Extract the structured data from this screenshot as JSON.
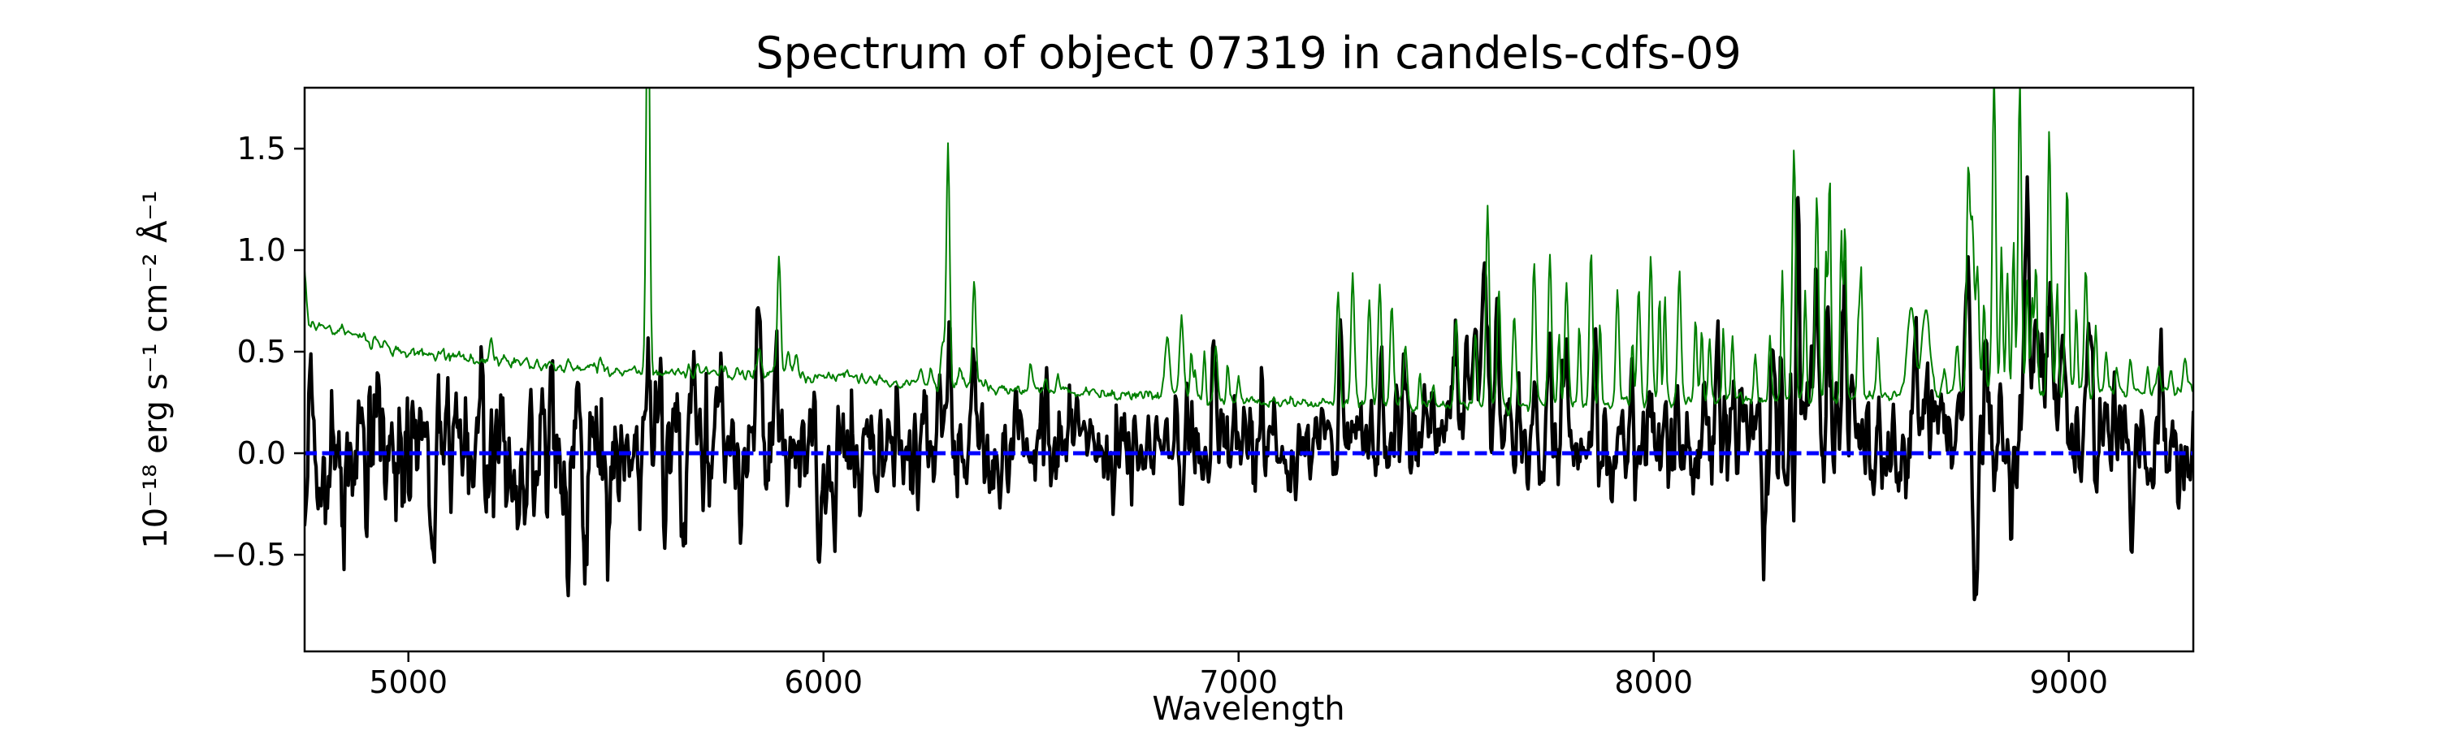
{
  "chart_data": {
    "type": "line",
    "title": "Spectrum of object 07319 in candels-cdfs-09",
    "xlabel": "Wavelength",
    "ylabel": "10⁻¹⁸ erg s⁻¹ cm⁻² Å⁻¹",
    "xlim": [
      4750,
      9300
    ],
    "ylim": [
      -0.976,
      1.8
    ],
    "xticks": [
      5000,
      6000,
      7000,
      8000,
      9000
    ],
    "yticks": [
      -0.5,
      0.0,
      0.5,
      1.0,
      1.5
    ],
    "grid": false,
    "legend": null,
    "background": "#ffffff",
    "wavelength_step": 2.5,
    "series": [
      {
        "name": "flux-spectrum",
        "color": "#000000",
        "linewidth": 4.2,
        "role": "object flux (noisy, centered on zero)",
        "noise_seed": 7319,
        "base_anchors": [
          [
            4750,
            0.0
          ],
          [
            5000,
            -0.02
          ],
          [
            5400,
            -0.03
          ],
          [
            5800,
            0.0
          ],
          [
            6200,
            0.02
          ],
          [
            6600,
            0.03
          ],
          [
            7000,
            0.04
          ],
          [
            7300,
            0.05
          ],
          [
            7550,
            0.12
          ],
          [
            7620,
            0.15
          ],
          [
            7700,
            0.1
          ],
          [
            7900,
            0.07
          ],
          [
            8100,
            0.08
          ],
          [
            8300,
            0.12
          ],
          [
            8450,
            0.1
          ],
          [
            8600,
            0.08
          ],
          [
            8740,
            0.12
          ],
          [
            8840,
            0.22
          ],
          [
            8950,
            0.22
          ],
          [
            9020,
            0.12
          ],
          [
            9150,
            0.03
          ],
          [
            9300,
            0.02
          ]
        ],
        "noise_sigma_anchors": [
          [
            4750,
            0.23
          ],
          [
            5000,
            0.215
          ],
          [
            5300,
            0.21
          ],
          [
            5600,
            0.19
          ],
          [
            5900,
            0.17
          ],
          [
            6200,
            0.155
          ],
          [
            6500,
            0.14
          ],
          [
            6800,
            0.125
          ],
          [
            7100,
            0.115
          ],
          [
            7400,
            0.115
          ],
          [
            7600,
            0.15
          ],
          [
            7800,
            0.135
          ],
          [
            8000,
            0.145
          ],
          [
            8200,
            0.16
          ],
          [
            8350,
            0.18
          ],
          [
            8500,
            0.155
          ],
          [
            8650,
            0.145
          ],
          [
            8800,
            0.2
          ],
          [
            8950,
            0.19
          ],
          [
            9100,
            0.15
          ],
          [
            9300,
            0.13
          ]
        ],
        "spikes": [
          [
            4765,
            0.35,
            4
          ],
          [
            4805,
            -0.5,
            4
          ],
          [
            4838,
            -0.45,
            4
          ],
          [
            5060,
            -0.3,
            4
          ],
          [
            5216,
            -0.35,
            4
          ],
          [
            5580,
            0.42,
            4
          ],
          [
            5753,
            0.38,
            4
          ],
          [
            5845,
            0.52,
            4
          ],
          [
            5883,
            0.42,
            4
          ],
          [
            6280,
            0.4,
            4
          ],
          [
            6308,
            0.55,
            4
          ],
          [
            6360,
            0.5,
            4
          ],
          [
            6465,
            0.28,
            4
          ],
          [
            6537,
            0.25,
            4
          ],
          [
            6875,
            0.3,
            7
          ],
          [
            6940,
            0.3,
            6
          ],
          [
            7248,
            0.33,
            4
          ],
          [
            7343,
            0.48,
            4
          ],
          [
            7398,
            0.58,
            4
          ],
          [
            7526,
            0.28,
            4
          ],
          [
            7593,
            0.6,
            7
          ],
          [
            7622,
            0.45,
            5
          ],
          [
            7712,
            0.4,
            4
          ],
          [
            7750,
            0.38,
            4
          ],
          [
            7790,
            0.35,
            4
          ],
          [
            7860,
            0.28,
            4
          ],
          [
            8346,
            0.95,
            4
          ],
          [
            8391,
            0.8,
            4
          ],
          [
            8420,
            0.55,
            4
          ],
          [
            8462,
            0.48,
            4
          ],
          [
            8500,
            0.4,
            4
          ],
          [
            8630,
            0.45,
            6
          ],
          [
            8658,
            0.45,
            6
          ],
          [
            8758,
            0.55,
            4
          ],
          [
            8775,
            -0.95,
            4
          ],
          [
            8800,
            0.4,
            4
          ],
          [
            8863,
            -0.72,
            4
          ],
          [
            8898,
            1.45,
            4
          ],
          [
            8918,
            0.8,
            4
          ],
          [
            8953,
            0.72,
            5
          ],
          [
            8986,
            0.72,
            4
          ],
          [
            9049,
            0.42,
            4
          ],
          [
            9152,
            -0.28,
            4
          ],
          [
            9220,
            0.25,
            4
          ]
        ]
      },
      {
        "name": "error-sky-spectrum",
        "color": "#008000",
        "linewidth": 2.0,
        "role": "noise / sky spectrum (thin green, clipped at top)",
        "wiggle_sigma": 0.009,
        "continuum_anchors": [
          [
            4750,
            0.86
          ],
          [
            4758,
            0.66
          ],
          [
            4790,
            0.615
          ],
          [
            4850,
            0.585
          ],
          [
            4900,
            0.565
          ],
          [
            4950,
            0.53
          ],
          [
            5000,
            0.5
          ],
          [
            5100,
            0.475
          ],
          [
            5200,
            0.455
          ],
          [
            5300,
            0.435
          ],
          [
            5400,
            0.42
          ],
          [
            5500,
            0.41
          ],
          [
            5600,
            0.405
          ],
          [
            5700,
            0.4
          ],
          [
            5800,
            0.4
          ],
          [
            5900,
            0.39
          ],
          [
            6000,
            0.38
          ],
          [
            6100,
            0.365
          ],
          [
            6200,
            0.35
          ],
          [
            6300,
            0.34
          ],
          [
            6400,
            0.325
          ],
          [
            6500,
            0.315
          ],
          [
            6600,
            0.3
          ],
          [
            6700,
            0.29
          ],
          [
            6800,
            0.28
          ],
          [
            6900,
            0.27
          ],
          [
            7000,
            0.26
          ],
          [
            7100,
            0.25
          ],
          [
            7200,
            0.245
          ],
          [
            7300,
            0.24
          ],
          [
            7400,
            0.235
          ],
          [
            7500,
            0.23
          ],
          [
            7600,
            0.235
          ],
          [
            7700,
            0.235
          ],
          [
            7800,
            0.235
          ],
          [
            7900,
            0.24
          ],
          [
            8000,
            0.25
          ],
          [
            8100,
            0.26
          ],
          [
            8200,
            0.27
          ],
          [
            8300,
            0.275
          ],
          [
            8400,
            0.27
          ],
          [
            8500,
            0.265
          ],
          [
            8600,
            0.285
          ],
          [
            8700,
            0.3
          ],
          [
            8800,
            0.305
          ],
          [
            8900,
            0.3
          ],
          [
            9000,
            0.3
          ],
          [
            9100,
            0.295
          ],
          [
            9200,
            0.3
          ],
          [
            9300,
            0.325
          ]
        ],
        "spikes": [
          [
            5199,
            0.11,
            4
          ],
          [
            5226,
            0.04,
            4
          ],
          [
            5461,
            0.05,
            4
          ],
          [
            5577,
            2.2,
            4
          ],
          [
            5697,
            0.04,
            4
          ],
          [
            5845,
            0.13,
            4
          ],
          [
            5893,
            0.56,
            4
          ],
          [
            5917,
            0.1,
            4
          ],
          [
            5935,
            0.08,
            4
          ],
          [
            6235,
            0.07,
            4
          ],
          [
            6257,
            0.08,
            4
          ],
          [
            6287,
            0.17,
            4
          ],
          [
            6300,
            1.19,
            4
          ],
          [
            6330,
            0.1,
            4
          ],
          [
            6363,
            0.53,
            4
          ],
          [
            6500,
            0.13,
            4
          ],
          [
            6533,
            0.08,
            4
          ],
          [
            6563,
            0.06,
            4
          ],
          [
            6828,
            0.29,
            6
          ],
          [
            6863,
            0.38,
            5
          ],
          [
            6886,
            0.24,
            3
          ],
          [
            6896,
            0.16,
            3
          ],
          [
            6918,
            0.22,
            3
          ],
          [
            6945,
            0.24,
            4
          ],
          [
            6974,
            0.17,
            3
          ],
          [
            7000,
            0.1,
            3
          ],
          [
            7240,
            0.56,
            4
          ],
          [
            7275,
            0.66,
            4
          ],
          [
            7315,
            0.52,
            4
          ],
          [
            7340,
            0.6,
            4
          ],
          [
            7369,
            0.48,
            4
          ],
          [
            7402,
            0.28,
            4
          ],
          [
            7437,
            0.17,
            3
          ],
          [
            7470,
            0.11,
            3
          ],
          [
            7524,
            0.43,
            4
          ],
          [
            7571,
            0.34,
            4
          ],
          [
            7600,
            1.0,
            4
          ],
          [
            7627,
            0.57,
            4
          ],
          [
            7664,
            0.44,
            4
          ],
          [
            7712,
            0.72,
            4
          ],
          [
            7750,
            0.74,
            4
          ],
          [
            7772,
            0.34,
            3
          ],
          [
            7790,
            0.6,
            4
          ],
          [
            7821,
            0.4,
            3
          ],
          [
            7849,
            0.76,
            4
          ],
          [
            7871,
            0.4,
            3
          ],
          [
            7913,
            0.55,
            4
          ],
          [
            7949,
            0.3,
            3
          ],
          [
            7964,
            0.55,
            4
          ],
          [
            7993,
            0.72,
            4
          ],
          [
            8014,
            0.5,
            3
          ],
          [
            8027,
            0.55,
            3
          ],
          [
            8062,
            0.68,
            4
          ],
          [
            8101,
            0.4,
            3
          ],
          [
            8116,
            0.35,
            3
          ],
          [
            8135,
            0.3,
            3
          ],
          [
            8168,
            0.35,
            3
          ],
          [
            8190,
            0.3,
            3
          ],
          [
            8245,
            0.2,
            3
          ],
          [
            8280,
            0.3,
            3
          ],
          [
            8310,
            0.6,
            3
          ],
          [
            8338,
            1.23,
            4
          ],
          [
            8365,
            0.55,
            3
          ],
          [
            8393,
            1.0,
            4
          ],
          [
            8415,
            0.7,
            3
          ],
          [
            8424,
            1.11,
            3
          ],
          [
            8452,
            0.8,
            3
          ],
          [
            8461,
            0.88,
            3
          ],
          [
            8493,
            0.38,
            3
          ],
          [
            8500,
            0.63,
            3
          ],
          [
            8540,
            0.3,
            3
          ],
          [
            8620,
            0.44,
            9
          ],
          [
            8655,
            0.42,
            9
          ],
          [
            8700,
            0.12,
            4
          ],
          [
            8730,
            0.2,
            4
          ],
          [
            8758,
            1.07,
            4
          ],
          [
            8768,
            0.8,
            4
          ],
          [
            8780,
            0.62,
            4
          ],
          [
            8796,
            0.45,
            3
          ],
          [
            8820,
            1.56,
            4
          ],
          [
            8838,
            0.7,
            3
          ],
          [
            8852,
            0.6,
            3
          ],
          [
            8867,
            0.75,
            3
          ],
          [
            8882,
            1.53,
            4
          ],
          [
            8900,
            0.55,
            3
          ],
          [
            8912,
            0.45,
            3
          ],
          [
            8921,
            0.6,
            3
          ],
          [
            8953,
            1.3,
            4
          ],
          [
            8972,
            0.55,
            3
          ],
          [
            8996,
            1.03,
            4
          ],
          [
            9018,
            0.4,
            3
          ],
          [
            9041,
            0.59,
            4
          ],
          [
            9065,
            0.3,
            3
          ],
          [
            9090,
            0.18,
            3
          ],
          [
            9115,
            0.12,
            3
          ],
          [
            9149,
            0.15,
            4
          ],
          [
            9190,
            0.1,
            3
          ],
          [
            9215,
            0.14,
            4
          ],
          [
            9245,
            0.1,
            3
          ],
          [
            9280,
            0.16,
            4
          ]
        ]
      },
      {
        "name": "zero-line",
        "color": "#0000ff",
        "linewidth": 5,
        "style": "dashed",
        "dash": [
          15,
          6.5
        ],
        "y": 0.0,
        "role": "horizontal dashed reference line at zero flux"
      }
    ]
  }
}
